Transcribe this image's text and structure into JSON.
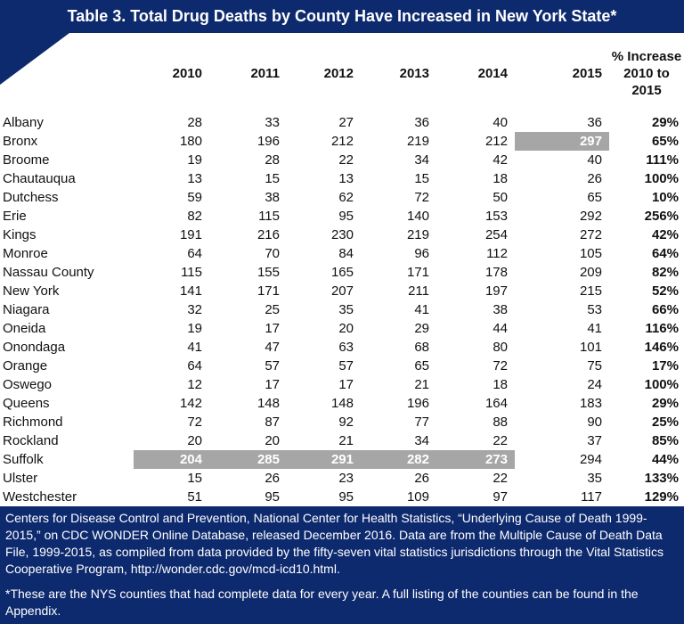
{
  "header": {
    "title": "Table 3. Total Drug Deaths by County Have Increased in New York State*"
  },
  "table": {
    "columns": [
      "2010",
      "2011",
      "2012",
      "2013",
      "2014",
      "2015",
      "% Increase 2010 to 2015"
    ],
    "rows": [
      [
        "Albany",
        28,
        33,
        27,
        36,
        40,
        36,
        "29%"
      ],
      [
        "Bronx",
        180,
        196,
        212,
        219,
        212,
        297,
        "65%"
      ],
      [
        "Broome",
        19,
        28,
        22,
        34,
        42,
        40,
        "111%"
      ],
      [
        "Chautauqua",
        13,
        15,
        13,
        15,
        18,
        26,
        "100%"
      ],
      [
        "Dutchess",
        59,
        38,
        62,
        72,
        50,
        65,
        "10%"
      ],
      [
        "Erie",
        82,
        115,
        95,
        140,
        153,
        292,
        "256%"
      ],
      [
        "Kings",
        191,
        216,
        230,
        219,
        254,
        272,
        "42%"
      ],
      [
        "Monroe",
        64,
        70,
        84,
        96,
        112,
        105,
        "64%"
      ],
      [
        "Nassau County",
        115,
        155,
        165,
        171,
        178,
        209,
        "82%"
      ],
      [
        "New York",
        141,
        171,
        207,
        211,
        197,
        215,
        "52%"
      ],
      [
        "Niagara",
        32,
        25,
        35,
        41,
        38,
        53,
        "66%"
      ],
      [
        "Oneida",
        19,
        17,
        20,
        29,
        44,
        41,
        "116%"
      ],
      [
        "Onondaga",
        41,
        47,
        63,
        68,
        80,
        101,
        "146%"
      ],
      [
        "Orange",
        64,
        57,
        57,
        65,
        72,
        75,
        "17%"
      ],
      [
        "Oswego",
        12,
        17,
        17,
        21,
        18,
        24,
        "100%"
      ],
      [
        "Queens",
        142,
        148,
        148,
        196,
        164,
        183,
        "29%"
      ],
      [
        "Richmond",
        72,
        87,
        92,
        77,
        88,
        90,
        "25%"
      ],
      [
        "Rockland",
        20,
        20,
        21,
        34,
        22,
        37,
        "85%"
      ],
      [
        "Suffolk",
        204,
        285,
        291,
        282,
        273,
        294,
        "44%"
      ],
      [
        "Ulster",
        15,
        26,
        23,
        26,
        22,
        35,
        "133%"
      ],
      [
        "Westchester",
        51,
        95,
        95,
        109,
        97,
        117,
        "129%"
      ]
    ]
  },
  "footer": {
    "source": "Centers for Disease Control and Prevention, National Center for Health Statistics, “Underlying Cause of Death 1999-2015,” on CDC WONDER Online Database, released December 2016. Data are from the Multiple Cause of Death Data File, 1999-2015, as compiled from data provided by the fifty-seven vital statistics jurisdictions through the Vital Statistics Cooperative Program, http://wonder.cdc.gov/mcd-icd10.html.",
    "note": "*These are the NYS counties that had complete data for every year. A full listing of the counties can be found in the Appendix."
  }
}
